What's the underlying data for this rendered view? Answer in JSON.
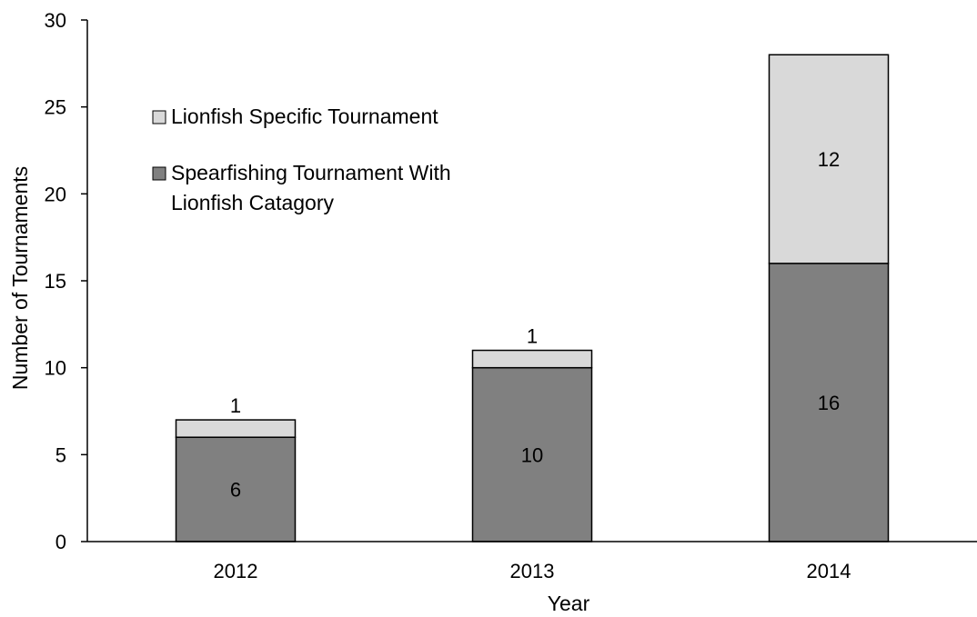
{
  "chart_data": {
    "type": "bar",
    "stacked": true,
    "categories": [
      "2012",
      "2013",
      "2014"
    ],
    "series": [
      {
        "name": "Spearfishing Tournament With Lionfish Catagory",
        "values": [
          6,
          10,
          16
        ],
        "color": "#808080"
      },
      {
        "name": "Lionfish Specific Tournament",
        "values": [
          1,
          1,
          12
        ],
        "color": "#d9d9d9"
      }
    ],
    "xlabel": "Year",
    "ylabel": "Number of Tournaments",
    "ylim": [
      0,
      30
    ],
    "yticks": [
      0,
      5,
      10,
      15,
      20,
      25,
      30
    ],
    "data_labels": [
      [
        "6",
        "10",
        "16"
      ],
      [
        "1",
        "1",
        "12"
      ]
    ],
    "legend": {
      "position": "top-left",
      "entries": [
        {
          "lines": [
            "Lionfish Specific Tournament"
          ],
          "color": "#d9d9d9"
        },
        {
          "lines": [
            "Spearfishing Tournament With",
            "Lionfish Catagory"
          ],
          "color": "#808080"
        }
      ]
    },
    "grid": false
  }
}
